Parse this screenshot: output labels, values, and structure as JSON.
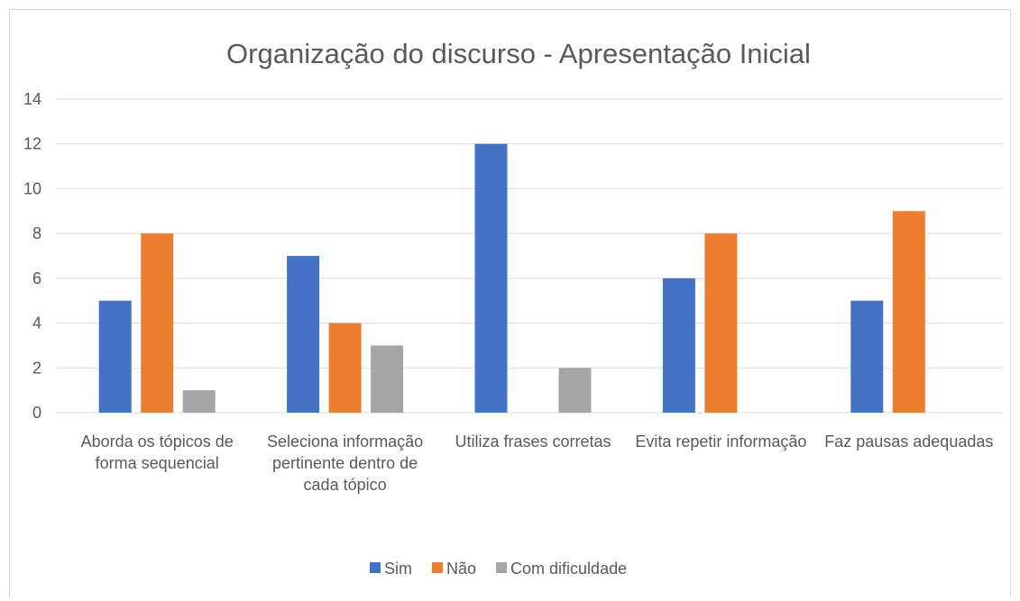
{
  "chart_data": {
    "type": "bar",
    "title": "Organização do discurso - Apresentação Inicial",
    "categories": [
      "Aborda os tópicos de forma sequencial",
      "Seleciona informação pertinente dentro de cada tópico",
      "Utiliza frases corretas",
      "Evita repetir informação",
      "Faz pausas adequadas"
    ],
    "series": [
      {
        "name": "Sim",
        "color": "#4472c4",
        "values": [
          5,
          7,
          12,
          6,
          5
        ]
      },
      {
        "name": "Não",
        "color": "#ed7d31",
        "values": [
          8,
          4,
          0,
          8,
          9
        ]
      },
      {
        "name": "Com dificuldade",
        "color": "#a5a5a5",
        "values": [
          1,
          3,
          2,
          0,
          0
        ]
      }
    ],
    "ylim": [
      0,
      14
    ],
    "yticks": [
      0,
      2,
      4,
      6,
      8,
      10,
      12,
      14
    ],
    "grid": true,
    "legend": "bottom"
  }
}
